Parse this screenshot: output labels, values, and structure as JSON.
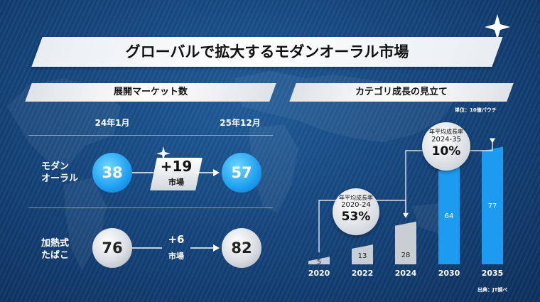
{
  "title": "グローバルで拡大するモダンオーラル市場",
  "left_panel": {
    "heading": "展開マーケット数",
    "col1": "24年1月",
    "col2": "25年12月",
    "rows": [
      {
        "label1": "モダン",
        "label2": "オーラル",
        "from": "38",
        "delta": "+19",
        "unit": "市場",
        "to": "57"
      },
      {
        "label1": "加熱式",
        "label2": "たばこ",
        "from": "76",
        "delta": "+6",
        "unit": "市場",
        "to": "82"
      }
    ]
  },
  "right_panel": {
    "heading": "カテゴリ成長の見立て",
    "unit_note": "単位：10億パウチ",
    "source": "出典：JT調べ",
    "cagr1": {
      "label": "年平均成長率",
      "period": "2020-24",
      "value": "53%"
    },
    "cagr2": {
      "label": "年平均成長率",
      "period": "2024-35",
      "value": "10%"
    }
  },
  "chart_data": {
    "type": "bar",
    "categories": [
      "2020",
      "2022",
      "2024",
      "2030",
      "2035"
    ],
    "values": [
      5,
      13,
      28,
      64,
      77
    ],
    "bar_colors": [
      "#c9ced4",
      "#c9ced4",
      "#c9ced4",
      "#1d9bf0",
      "#1d9bf0"
    ],
    "ylim": [
      0,
      80
    ]
  },
  "colors": {
    "accent": "#1d9bf0",
    "bg": "#15457c"
  }
}
